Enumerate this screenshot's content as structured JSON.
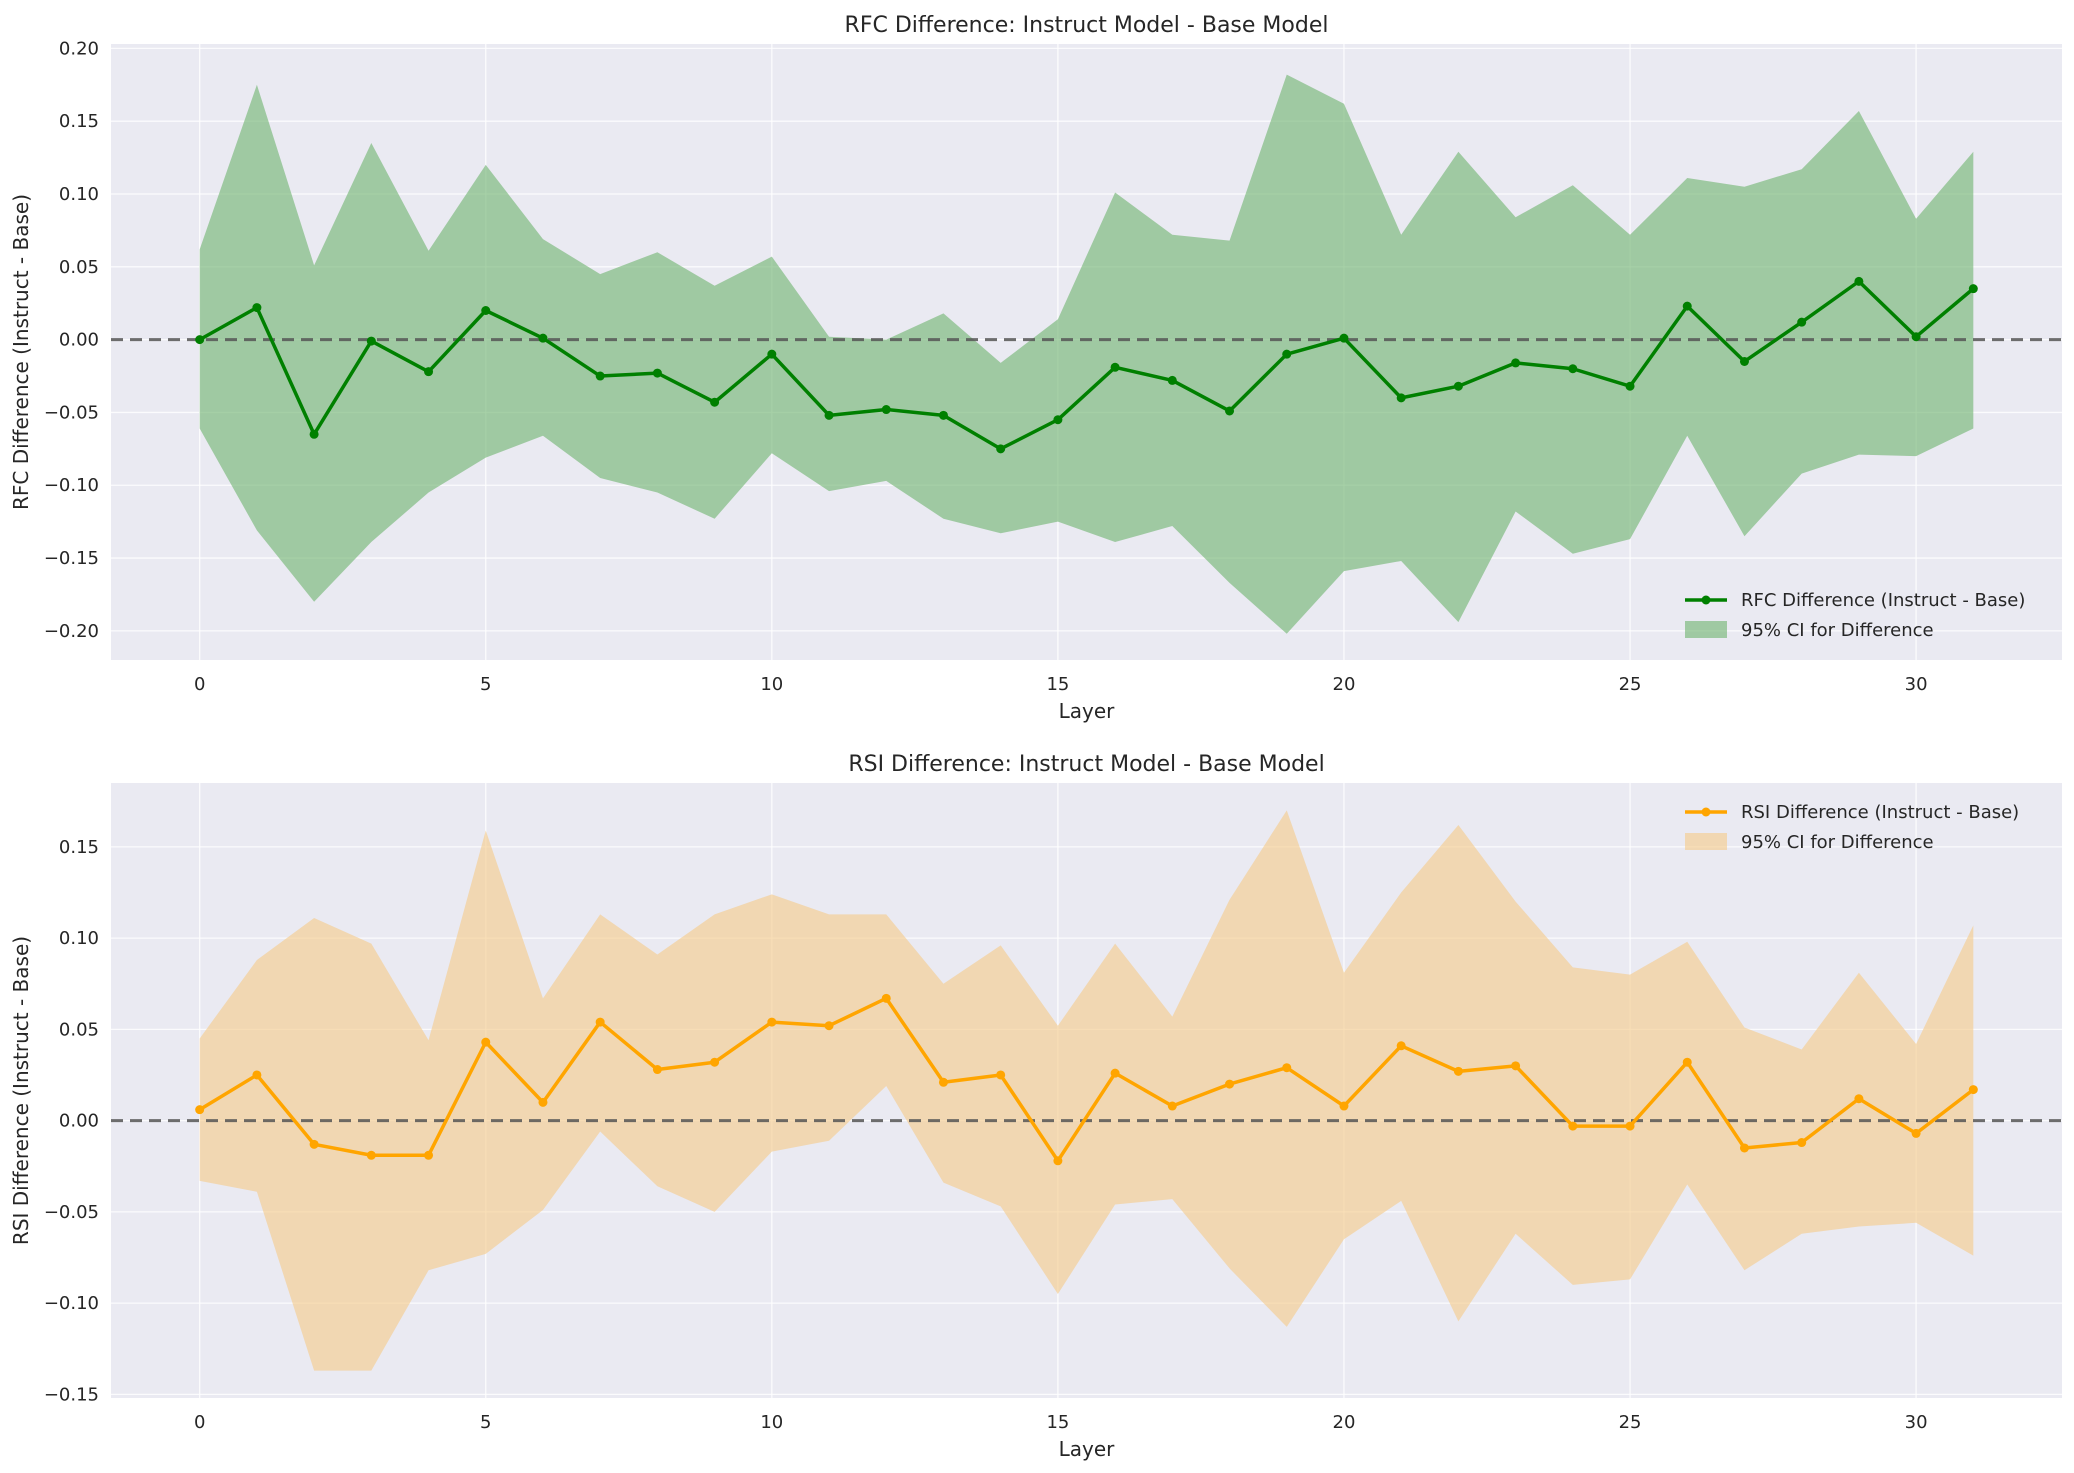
{
  "chart_data": [
    {
      "type": "line",
      "title": "RFC Difference: Instruct Model - Base Model",
      "xlabel": "Layer",
      "ylabel": "RFC Difference (Instruct - Base)",
      "xlim": [
        -1.55,
        32.55
      ],
      "ylim": [
        -0.22,
        0.203
      ],
      "xticks": [
        0,
        5,
        10,
        15,
        20,
        25,
        30
      ],
      "xtick_labels": [
        "0",
        "5",
        "10",
        "15",
        "20",
        "25",
        "30"
      ],
      "yticks": [
        -0.2,
        -0.15,
        -0.1,
        -0.05,
        0.0,
        0.05,
        0.1,
        0.15,
        0.2
      ],
      "ytick_labels": [
        "−0.20",
        "−0.15",
        "−0.10",
        "−0.05",
        "0.00",
        "0.05",
        "0.10",
        "0.15",
        "0.20"
      ],
      "grid": true,
      "legend_position": "lower-right",
      "reference_line": 0,
      "colors": {
        "line": "#008000",
        "band": "#6cb26c",
        "refline": "#555555",
        "background": "#eaeaf2"
      },
      "x": [
        0,
        1,
        2,
        3,
        4,
        5,
        6,
        7,
        8,
        9,
        10,
        11,
        12,
        13,
        14,
        15,
        16,
        17,
        18,
        19,
        20,
        21,
        22,
        23,
        24,
        25,
        26,
        27,
        28,
        29,
        30,
        31
      ],
      "series": [
        {
          "name": "RFC Difference (Instruct - Base)",
          "values": [
            0.0,
            0.022,
            -0.065,
            -0.001,
            -0.022,
            0.02,
            0.001,
            -0.025,
            -0.023,
            -0.043,
            -0.01,
            -0.052,
            -0.048,
            -0.052,
            -0.075,
            -0.055,
            -0.019,
            -0.028,
            -0.049,
            -0.01,
            0.001,
            -0.04,
            -0.032,
            -0.016,
            -0.02,
            -0.032,
            0.023,
            -0.015,
            0.012,
            0.04,
            0.002,
            0.035
          ]
        }
      ],
      "band": {
        "name": "95% CI for Difference",
        "upper": [
          0.062,
          0.175,
          0.051,
          0.135,
          0.061,
          0.12,
          0.069,
          0.045,
          0.06,
          0.037,
          0.057,
          0.002,
          0.0,
          0.018,
          -0.016,
          0.014,
          0.101,
          0.072,
          0.068,
          0.182,
          0.162,
          0.072,
          0.129,
          0.084,
          0.106,
          0.072,
          0.111,
          0.105,
          0.117,
          0.157,
          0.083,
          0.129
        ],
        "lower": [
          -0.061,
          -0.131,
          -0.18,
          -0.139,
          -0.105,
          -0.081,
          -0.066,
          -0.095,
          -0.105,
          -0.123,
          -0.078,
          -0.104,
          -0.097,
          -0.123,
          -0.133,
          -0.125,
          -0.139,
          -0.128,
          -0.167,
          -0.202,
          -0.159,
          -0.152,
          -0.194,
          -0.118,
          -0.147,
          -0.137,
          -0.066,
          -0.135,
          -0.092,
          -0.079,
          -0.08,
          -0.061
        ]
      }
    },
    {
      "type": "line",
      "title": "RSI Difference: Instruct Model - Base Model",
      "xlabel": "Layer",
      "ylabel": "RSI Difference (Instruct - Base)",
      "xlim": [
        -1.55,
        32.55
      ],
      "ylim": [
        -0.152,
        0.185
      ],
      "xticks": [
        0,
        5,
        10,
        15,
        20,
        25,
        30
      ],
      "xtick_labels": [
        "0",
        "5",
        "10",
        "15",
        "20",
        "25",
        "30"
      ],
      "yticks": [
        -0.15,
        -0.1,
        -0.05,
        0.0,
        0.05,
        0.1,
        0.15
      ],
      "ytick_labels": [
        "−0.15",
        "−0.10",
        "−0.05",
        "0.00",
        "0.05",
        "0.10",
        "0.15"
      ],
      "grid": true,
      "legend_position": "upper-right",
      "reference_line": 0,
      "colors": {
        "line": "#ffa500",
        "band": "#f5c987",
        "refline": "#555555",
        "background": "#eaeaf2"
      },
      "x": [
        0,
        1,
        2,
        3,
        4,
        5,
        6,
        7,
        8,
        9,
        10,
        11,
        12,
        13,
        14,
        15,
        16,
        17,
        18,
        19,
        20,
        21,
        22,
        23,
        24,
        25,
        26,
        27,
        28,
        29,
        30,
        31
      ],
      "series": [
        {
          "name": "RSI Difference (Instruct - Base)",
          "values": [
            0.006,
            0.025,
            -0.013,
            -0.019,
            -0.019,
            0.043,
            0.01,
            0.054,
            0.028,
            0.032,
            0.054,
            0.052,
            0.067,
            0.021,
            0.025,
            -0.022,
            0.026,
            0.008,
            0.02,
            0.029,
            0.008,
            0.041,
            0.027,
            0.03,
            -0.003,
            -0.003,
            0.032,
            -0.015,
            -0.012,
            0.012,
            -0.007,
            0.017
          ]
        }
      ],
      "band": {
        "name": "95% CI for Difference",
        "upper": [
          0.045,
          0.088,
          0.111,
          0.097,
          0.044,
          0.159,
          0.067,
          0.113,
          0.091,
          0.113,
          0.124,
          0.113,
          0.113,
          0.075,
          0.096,
          0.052,
          0.097,
          0.057,
          0.121,
          0.17,
          0.081,
          0.125,
          0.162,
          0.12,
          0.084,
          0.08,
          0.098,
          0.051,
          0.039,
          0.081,
          0.042,
          0.107
        ],
        "lower": [
          -0.033,
          -0.039,
          -0.137,
          -0.137,
          -0.082,
          -0.073,
          -0.049,
          -0.006,
          -0.036,
          -0.05,
          -0.017,
          -0.011,
          0.019,
          -0.034,
          -0.047,
          -0.095,
          -0.046,
          -0.043,
          -0.081,
          -0.113,
          -0.065,
          -0.044,
          -0.11,
          -0.062,
          -0.09,
          -0.087,
          -0.035,
          -0.082,
          -0.062,
          -0.058,
          -0.056,
          -0.074
        ]
      }
    }
  ]
}
